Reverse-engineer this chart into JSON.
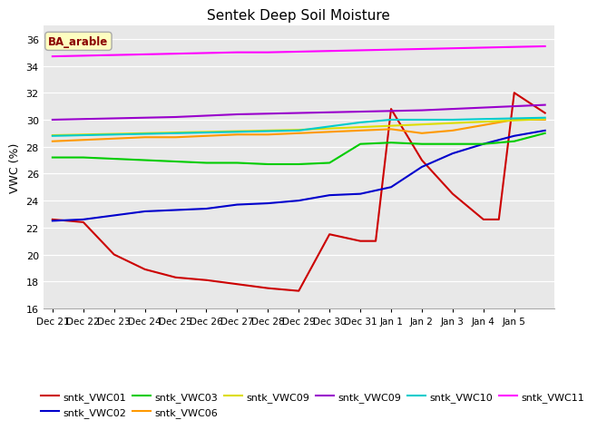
{
  "title": "Sentek Deep Soil Moisture",
  "ylabel": "VWC (%)",
  "ylim": [
    16,
    37
  ],
  "yticks": [
    16,
    18,
    20,
    22,
    24,
    26,
    28,
    30,
    32,
    34,
    36
  ],
  "background_color": "#e8e8e8",
  "annotation_text": "BA_arable",
  "annotation_color": "#8b0000",
  "annotation_bg": "#fdfdc0",
  "series_order": [
    "sntk_VWC01",
    "sntk_VWC02",
    "sntk_VWC03",
    "sntk_VWC06",
    "sntk_VWC09_y",
    "sntk_VWC09_p",
    "sntk_VWC10",
    "sntk_VWC11"
  ],
  "series": {
    "sntk_VWC01": {
      "color": "#cc0000",
      "label": "sntk_VWC01",
      "data_x": [
        0,
        1,
        2,
        3,
        4,
        5,
        6,
        7,
        8,
        9,
        10,
        10.5,
        11,
        12,
        13,
        14,
        14.5,
        15,
        16
      ],
      "data_y": [
        22.6,
        22.4,
        20.0,
        18.9,
        18.3,
        18.1,
        17.8,
        17.5,
        17.3,
        21.5,
        21.0,
        21.0,
        30.8,
        27.0,
        24.5,
        22.6,
        22.6,
        32.0,
        30.5
      ]
    },
    "sntk_VWC02": {
      "color": "#0000cc",
      "label": "sntk_VWC02",
      "data_x": [
        0,
        1,
        2,
        3,
        4,
        5,
        6,
        7,
        8,
        9,
        10,
        11,
        12,
        13,
        14,
        15,
        16
      ],
      "data_y": [
        22.5,
        22.6,
        22.9,
        23.2,
        23.3,
        23.4,
        23.7,
        23.8,
        24.0,
        24.4,
        24.5,
        25.0,
        26.5,
        27.5,
        28.2,
        28.8,
        29.2
      ]
    },
    "sntk_VWC03": {
      "color": "#00cc00",
      "label": "sntk_VWC03",
      "data_x": [
        0,
        1,
        2,
        3,
        4,
        5,
        6,
        7,
        8,
        9,
        10,
        11,
        12,
        13,
        14,
        15,
        16
      ],
      "data_y": [
        27.2,
        27.2,
        27.1,
        27.0,
        26.9,
        26.8,
        26.8,
        26.7,
        26.7,
        26.8,
        28.2,
        28.3,
        28.2,
        28.2,
        28.2,
        28.4,
        29.0
      ]
    },
    "sntk_VWC06": {
      "color": "#ff9900",
      "label": "sntk_VWC06",
      "data_x": [
        0,
        1,
        2,
        3,
        4,
        5,
        6,
        7,
        8,
        9,
        10,
        11,
        12,
        13,
        14,
        15,
        16
      ],
      "data_y": [
        28.4,
        28.5,
        28.6,
        28.7,
        28.7,
        28.8,
        28.9,
        28.9,
        29.0,
        29.1,
        29.2,
        29.3,
        29.0,
        29.2,
        29.6,
        30.0,
        30.0
      ]
    },
    "sntk_VWC09_y": {
      "color": "#dddd00",
      "label": "sntk_VWC09",
      "data_x": [
        0,
        1,
        2,
        3,
        4,
        5,
        6,
        7,
        8,
        9,
        10,
        11,
        12,
        13,
        14,
        15,
        16
      ],
      "data_y": [
        28.85,
        28.9,
        28.95,
        29.0,
        29.05,
        29.1,
        29.15,
        29.2,
        29.25,
        29.35,
        29.45,
        29.55,
        29.65,
        29.75,
        29.85,
        29.95,
        30.05
      ]
    },
    "sntk_VWC09_p": {
      "color": "#9900cc",
      "label": "sntk_VWC09",
      "data_x": [
        0,
        1,
        2,
        3,
        4,
        5,
        6,
        7,
        8,
        9,
        10,
        11,
        12,
        13,
        14,
        15,
        16
      ],
      "data_y": [
        30.0,
        30.05,
        30.1,
        30.15,
        30.2,
        30.3,
        30.4,
        30.45,
        30.5,
        30.55,
        30.6,
        30.65,
        30.7,
        30.8,
        30.9,
        31.0,
        31.1
      ]
    },
    "sntk_VWC10": {
      "color": "#00cccc",
      "label": "sntk_VWC10",
      "data_x": [
        0,
        1,
        2,
        3,
        4,
        5,
        6,
        7,
        8,
        9,
        10,
        11,
        12,
        13,
        14,
        15,
        16
      ],
      "data_y": [
        28.8,
        28.85,
        28.9,
        28.95,
        29.0,
        29.05,
        29.1,
        29.15,
        29.2,
        29.5,
        29.8,
        30.0,
        30.0,
        30.0,
        30.05,
        30.1,
        30.15
      ]
    },
    "sntk_VWC11": {
      "color": "#ff00ff",
      "label": "sntk_VWC11",
      "data_x": [
        0,
        1,
        2,
        3,
        4,
        5,
        6,
        7,
        8,
        9,
        10,
        11,
        12,
        13,
        14,
        15,
        16
      ],
      "data_y": [
        34.7,
        34.75,
        34.8,
        34.85,
        34.9,
        34.95,
        35.0,
        35.0,
        35.05,
        35.1,
        35.15,
        35.2,
        35.25,
        35.3,
        35.35,
        35.4,
        35.45
      ]
    }
  },
  "xtick_labels": [
    "Dec 21",
    "Dec 22",
    "Dec 23",
    "Dec 24",
    "Dec 25",
    "Dec 26",
    "Dec 27",
    "Dec 28",
    "Dec 29",
    "Dec 30",
    "Dec 31",
    "Jan 1",
    "Jan 2",
    "Jan 3",
    "Jan 4",
    "Jan 5"
  ],
  "xtick_positions": [
    0,
    1,
    2,
    3,
    4,
    5,
    6,
    7,
    8,
    9,
    10,
    11,
    12,
    13,
    14,
    15
  ],
  "xlim": [
    -0.3,
    16.3
  ]
}
